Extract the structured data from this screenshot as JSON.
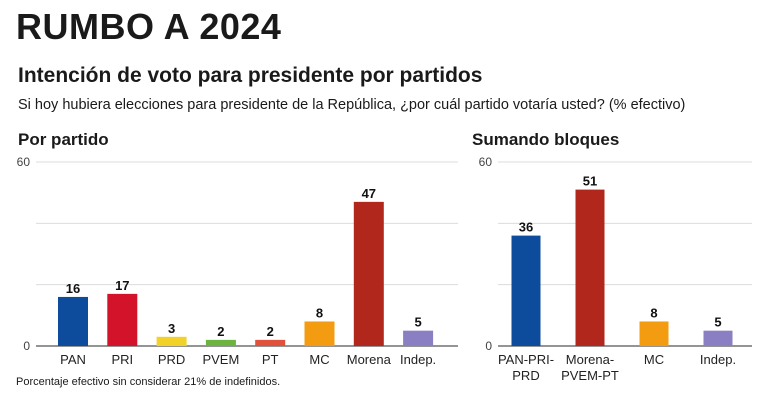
{
  "header": {
    "title": "RUMBO A 2024",
    "subtitle": "Intención de voto para presidente por partidos",
    "question": "Si hoy hubiera elecciones para presidente de la República, ¿por cuál partido votaría usted? (% efectivo)"
  },
  "footnote": "Porcentaje efectivo sin considerar 21% de indefinidos.",
  "chart_data": [
    {
      "type": "bar",
      "title": "Por partido",
      "categories": [
        [
          "PAN"
        ],
        [
          "PRI"
        ],
        [
          "PRD"
        ],
        [
          "PVEM"
        ],
        [
          "PT"
        ],
        [
          "MC"
        ],
        [
          "Morena"
        ],
        [
          "Indep."
        ]
      ],
      "values": [
        16,
        17,
        3,
        2,
        2,
        8,
        47,
        5
      ],
      "colors": [
        "#0d4c9c",
        "#d3132a",
        "#f2d129",
        "#6cb33f",
        "#e1523d",
        "#f39c12",
        "#b2271b",
        "#8a7fc2"
      ],
      "ylim": [
        0,
        60
      ],
      "yticks": [
        "0",
        "60"
      ],
      "grid": true
    },
    {
      "type": "bar",
      "title": "Sumando bloques",
      "categories": [
        [
          "PAN-PRI-",
          "PRD"
        ],
        [
          "Morena-",
          "PVEM-PT"
        ],
        [
          "MC"
        ],
        [
          "Indep."
        ]
      ],
      "values": [
        36,
        51,
        8,
        5
      ],
      "colors": [
        "#0d4c9c",
        "#b2271b",
        "#f39c12",
        "#8a7fc2"
      ],
      "ylim": [
        0,
        60
      ],
      "yticks": [
        "0",
        "60"
      ],
      "grid": true
    }
  ]
}
